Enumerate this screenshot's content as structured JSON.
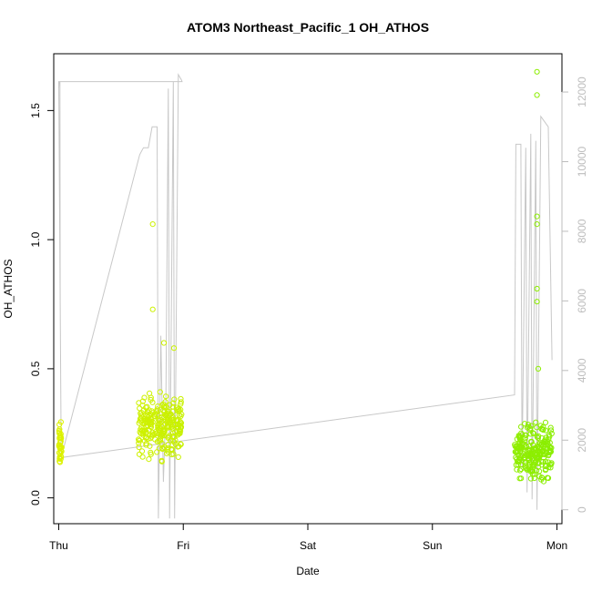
{
  "chart_data": {
    "type": "scatter",
    "title": "ATOM3 Northeast_Pacific_1 OH_ATHOS",
    "xlabel": "Date",
    "ylabel": "OH_ATHOS",
    "x_unit": "days",
    "xlim": [
      -0.04,
      4.04
    ],
    "ylim": [
      -0.1,
      1.72
    ],
    "y_ticks": [
      0.0,
      0.5,
      1.0,
      1.5
    ],
    "y_tick_labels": [
      "0.0",
      "0.5",
      "1.0",
      "1.5"
    ],
    "x_ticks": [
      0,
      1,
      2,
      3,
      4
    ],
    "x_tick_labels": [
      "Thu",
      "Fri",
      "Sat",
      "Sun",
      "Mon"
    ],
    "y2lim": [
      -400,
      13100
    ],
    "y2_ticks": [
      0,
      2000,
      4000,
      6000,
      8000,
      10000,
      12000
    ],
    "y2_tick_labels": [
      "0",
      "2000",
      "4000",
      "6000",
      "8000",
      "10000",
      "12000"
    ],
    "grid": false,
    "legend": "none",
    "colors": {
      "point_early": "#ddf200",
      "point_late": "#88ee00",
      "altitude_line": "#c8c8c8",
      "axis": "#000000",
      "secondary_axis": "#bdbdbd"
    },
    "series": [
      {
        "type": "scatter",
        "axis": "primary",
        "segments": [
          {
            "x": [
              0.0,
              0.025
            ],
            "center": 0.2,
            "spread": 0.07,
            "n": 40
          },
          {
            "x": [
              0.64,
              0.99
            ],
            "center": 0.28,
            "spread": 0.09,
            "n": 260
          },
          {
            "x": [
              3.66,
              3.96
            ],
            "center": 0.18,
            "spread": 0.08,
            "n": 240
          }
        ],
        "highlights": [
          {
            "x": 0.755,
            "y": 1.06
          },
          {
            "x": 0.755,
            "y": 0.73
          },
          {
            "x": 0.845,
            "y": 0.6
          },
          {
            "x": 0.925,
            "y": 0.58
          },
          {
            "x": 3.84,
            "y": 1.65
          },
          {
            "x": 3.84,
            "y": 1.56
          },
          {
            "x": 3.84,
            "y": 1.09
          },
          {
            "x": 3.84,
            "y": 1.06
          },
          {
            "x": 3.84,
            "y": 0.81
          },
          {
            "x": 3.84,
            "y": 0.76
          },
          {
            "x": 3.85,
            "y": 0.5
          }
        ]
      },
      {
        "type": "line",
        "axis": "secondary",
        "points": [
          [
            0.0,
            12100
          ],
          [
            0.003,
            12300
          ],
          [
            0.01,
            12300
          ],
          [
            0.012,
            6000
          ],
          [
            0.02,
            1500
          ],
          [
            0.65,
            10200
          ],
          [
            0.68,
            10400
          ],
          [
            0.72,
            10400
          ],
          [
            0.75,
            11000
          ],
          [
            0.79,
            11000
          ],
          [
            0.8,
            -250
          ],
          [
            0.82,
            5000
          ],
          [
            0.84,
            800
          ],
          [
            0.86,
            3000
          ],
          [
            0.88,
            12100
          ],
          [
            0.89,
            -250
          ],
          [
            0.92,
            12300
          ],
          [
            0.93,
            -250
          ],
          [
            0.96,
            12500
          ],
          [
            0.985,
            12350
          ],
          [
            0.99,
            12300
          ],
          [
            0.0,
            12300
          ],
          [
            0.02,
            1500
          ],
          [
            3.66,
            3300
          ],
          [
            3.67,
            10500
          ],
          [
            3.71,
            10500
          ],
          [
            3.72,
            1200
          ],
          [
            3.75,
            10400
          ],
          [
            3.76,
            500
          ],
          [
            3.79,
            10800
          ],
          [
            3.8,
            300
          ],
          [
            3.83,
            10600
          ],
          [
            3.84,
            0
          ],
          [
            3.87,
            11300
          ],
          [
            3.93,
            11000
          ],
          [
            3.96,
            4300
          ]
        ]
      }
    ]
  }
}
